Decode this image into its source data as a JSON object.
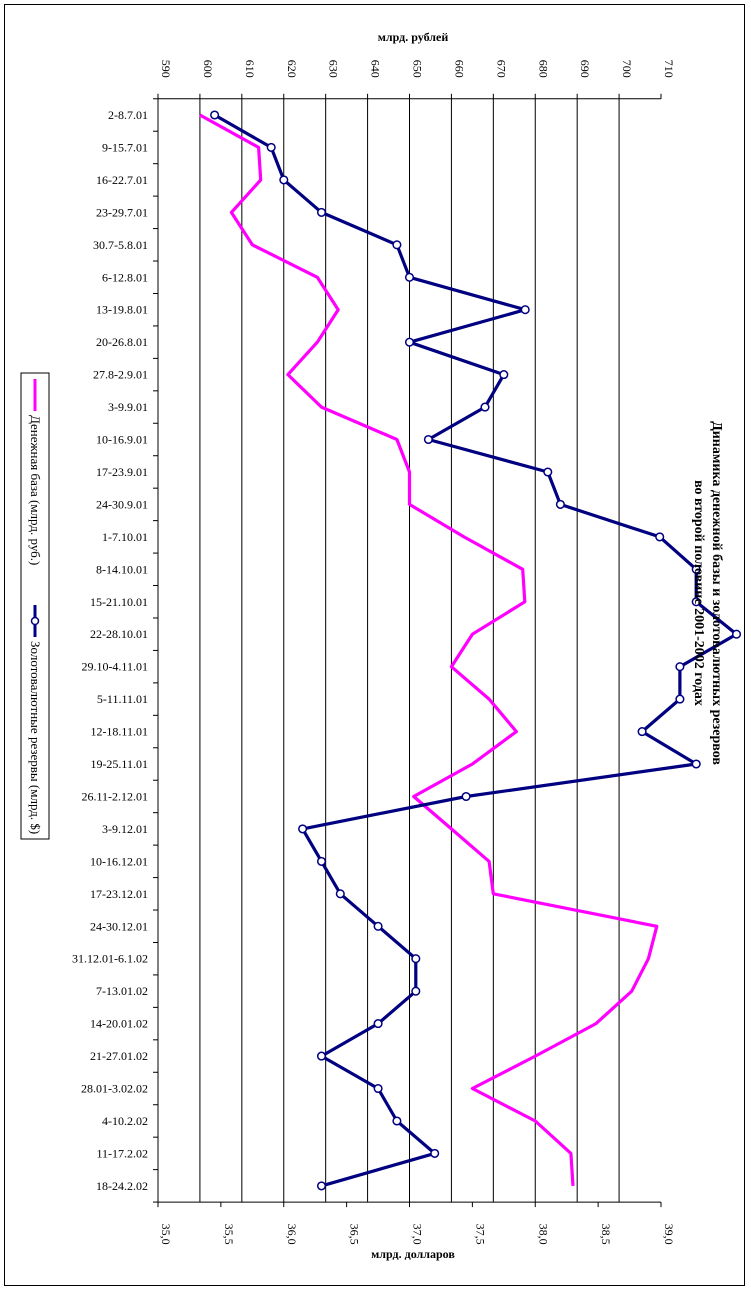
{
  "chart_data": {
    "type": "line",
    "title": "Динамика денежной базы и золотовалютных резервов",
    "subtitle": "во второй половине 2001-2002 годах",
    "orientation": "rotated-90",
    "top_axis": {
      "label": "млрд. рублей",
      "range": [
        590,
        710
      ],
      "step": 10,
      "ticks": [
        "590",
        "600",
        "610",
        "620",
        "630",
        "640",
        "650",
        "660",
        "670",
        "680",
        "690",
        "700",
        "710"
      ]
    },
    "bottom_axis": {
      "label": "млрд. долларов",
      "range": [
        35.0,
        39.0
      ],
      "step": 0.5,
      "ticks": [
        "35,0",
        "35,5",
        "36,0",
        "36,5",
        "37,0",
        "37,5",
        "38,0",
        "38,5",
        "39,0"
      ]
    },
    "categories": [
      "2-8.7.01",
      "9-15.7.01",
      "16-22.7.01",
      "23-29.7.01",
      "30.7-5.8.01",
      "6-12.8.01",
      "13-19.8.01",
      "20-26.8.01",
      "27.8-2.9.01",
      "3-9.9.01",
      "10-16.9.01",
      "17-23.9.01",
      "24-30.9.01",
      "1-7.10.01",
      "8-14.10.01",
      "15-21.10.01",
      "22-28.10.01",
      "29.10-4.11.01",
      "5-11.11.01",
      "12-18.11.01",
      "19-25.11.01",
      "26.11-2.12.01",
      "3-9.12.01",
      "10-16.12.01",
      "17-23.12.01",
      "24-30.12.01",
      "31.12.01-6.1.02",
      "7-13.01.02",
      "14-20.01.02",
      "21-27.01.02",
      "28.01-3.02.02",
      "4-10.2.02",
      "11-17.2.02",
      "18-24.2.02"
    ],
    "series": [
      {
        "name": "Денежная база (млрд. руб.)",
        "axis": "top",
        "color": "#ff00ff",
        "marker": "none",
        "values": [
          600,
          614,
          614.5,
          607.5,
          612.5,
          628,
          633,
          628,
          621,
          629,
          647,
          650,
          650,
          663,
          677,
          677.5,
          665,
          660,
          669,
          675.5,
          665,
          651,
          660,
          669,
          670,
          709,
          707,
          703,
          694.5,
          680,
          665,
          680,
          688.5,
          689
        ]
      },
      {
        "name": "Золотовалютные резервы (млрд. $)",
        "axis": "bottom",
        "color": "#000080",
        "marker": "open-circle",
        "values": [
          35.45,
          35.9,
          36.0,
          36.3,
          36.9,
          37.0,
          37.92,
          37.0,
          37.75,
          37.6,
          37.15,
          38.1,
          38.2,
          38.99,
          39.28,
          39.28,
          39.6,
          39.15,
          39.15,
          38.85,
          39.28,
          37.45,
          36.15,
          36.3,
          36.45,
          36.75,
          37.05,
          37.05,
          36.75,
          36.3,
          36.75,
          36.9,
          37.2,
          36.3
        ]
      }
    ],
    "grid": true,
    "legend_position": "left"
  }
}
